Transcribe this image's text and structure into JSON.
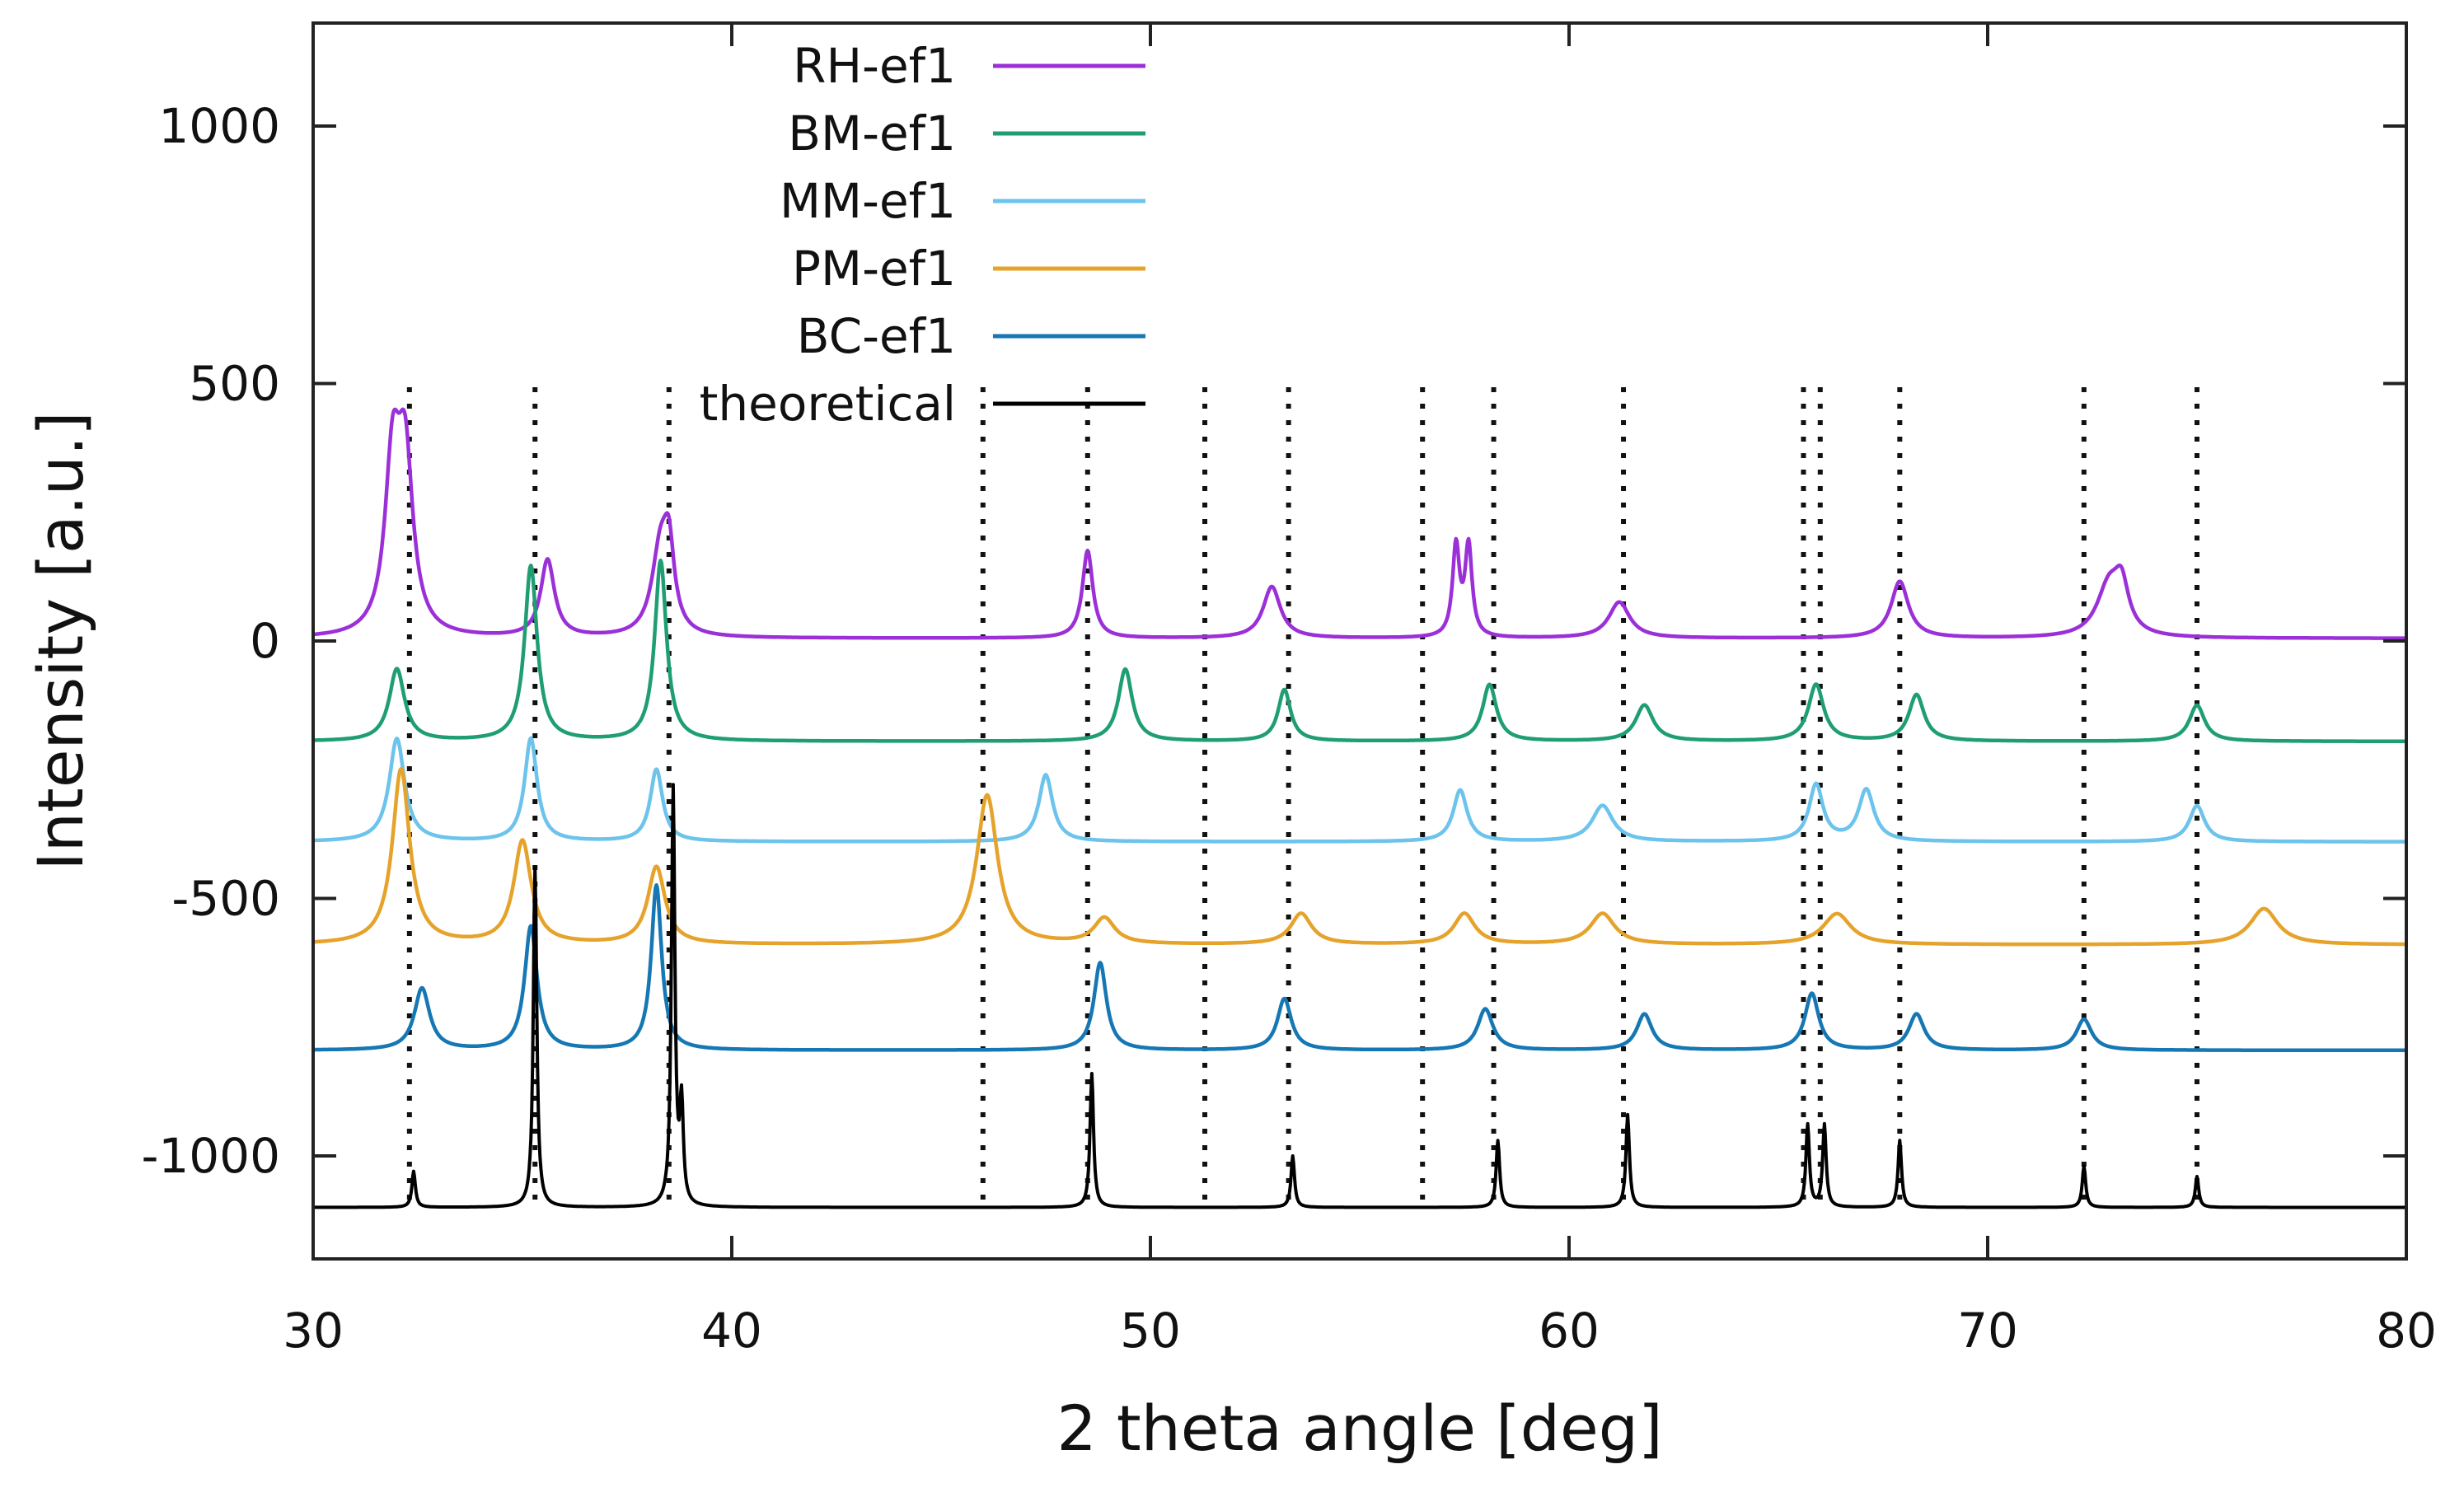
{
  "chart_data": {
    "type": "line",
    "title": "",
    "xlabel": "2 theta angle [deg]",
    "ylabel": "Intensity [a.u.]",
    "xlim": [
      30,
      80
    ],
    "ylim": [
      -1200,
      1200
    ],
    "grid": false,
    "legend_position": "top-center",
    "xticks": [
      30,
      40,
      50,
      60,
      70,
      80
    ],
    "xtick_labels": [
      "30",
      "40",
      "50",
      "60",
      "70",
      "80"
    ],
    "yticks": [
      -1000,
      -500,
      0,
      500,
      1000
    ],
    "ytick_labels": [
      "-1000",
      "-500",
      "0",
      "500",
      "1000"
    ],
    "reference_lines_x": [
      32.3,
      35.3,
      38.5,
      46.0,
      48.5,
      51.3,
      53.3,
      56.5,
      58.2,
      61.3,
      65.6,
      66.0,
      67.9,
      72.3,
      75.0
    ],
    "series": [
      {
        "name": "RH-ef1",
        "label": "RH-ef1",
        "color": "#9b30d9",
        "baseline": 5,
        "peaks": [
          [
            31.9,
            320,
            0.22
          ],
          [
            32.2,
            320,
            0.22
          ],
          [
            35.6,
            150,
            0.2
          ],
          [
            38.3,
            170,
            0.25
          ],
          [
            38.5,
            130,
            0.15
          ],
          [
            48.5,
            170,
            0.15
          ],
          [
            52.9,
            100,
            0.25
          ],
          [
            57.3,
            175,
            0.1
          ],
          [
            57.6,
            175,
            0.1
          ],
          [
            61.2,
            70,
            0.3
          ],
          [
            67.9,
            110,
            0.25
          ],
          [
            72.9,
            100,
            0.35
          ],
          [
            73.2,
            80,
            0.2
          ]
        ]
      },
      {
        "name": "BM-ef1",
        "label": "BM-ef1",
        "color": "#1f9e73",
        "baseline": -195,
        "peaks": [
          [
            32.0,
            140,
            0.22
          ],
          [
            35.2,
            340,
            0.18
          ],
          [
            38.3,
            350,
            0.17
          ],
          [
            49.4,
            140,
            0.2
          ],
          [
            53.2,
            100,
            0.18
          ],
          [
            58.1,
            110,
            0.2
          ],
          [
            61.8,
            70,
            0.25
          ],
          [
            65.9,
            110,
            0.22
          ],
          [
            68.3,
            90,
            0.22
          ],
          [
            75.0,
            70,
            0.22
          ]
        ]
      },
      {
        "name": "MM-ef1",
        "label": "MM-ef1",
        "color": "#6cc3ec",
        "baseline": -390,
        "peaks": [
          [
            32.0,
            200,
            0.22
          ],
          [
            35.2,
            200,
            0.18
          ],
          [
            38.2,
            140,
            0.18
          ],
          [
            47.5,
            130,
            0.2
          ],
          [
            57.4,
            100,
            0.2
          ],
          [
            60.8,
            70,
            0.3
          ],
          [
            65.9,
            110,
            0.2
          ],
          [
            67.1,
            100,
            0.22
          ],
          [
            75.0,
            70,
            0.22
          ]
        ]
      },
      {
        "name": "PM-ef1",
        "label": "PM-ef1",
        "color": "#e6a32b",
        "baseline": -590,
        "peaks": [
          [
            32.1,
            340,
            0.25
          ],
          [
            35.0,
            200,
            0.25
          ],
          [
            38.2,
            150,
            0.25
          ],
          [
            46.1,
            290,
            0.3
          ],
          [
            48.9,
            50,
            0.3
          ],
          [
            53.6,
            60,
            0.3
          ],
          [
            57.5,
            60,
            0.3
          ],
          [
            60.8,
            60,
            0.35
          ],
          [
            66.4,
            60,
            0.4
          ],
          [
            76.6,
            70,
            0.4
          ]
        ]
      },
      {
        "name": "BC-ef1",
        "label": "BC-ef1",
        "color": "#1577b3",
        "baseline": -795,
        "peaks": [
          [
            32.6,
            120,
            0.22
          ],
          [
            35.2,
            240,
            0.18
          ],
          [
            38.2,
            320,
            0.15
          ],
          [
            48.8,
            170,
            0.18
          ],
          [
            53.2,
            100,
            0.2
          ],
          [
            58.0,
            80,
            0.22
          ],
          [
            61.8,
            70,
            0.22
          ],
          [
            65.8,
            110,
            0.2
          ],
          [
            68.3,
            70,
            0.22
          ],
          [
            72.3,
            60,
            0.22
          ]
        ]
      },
      {
        "name": "theoretical",
        "label": "theoretical",
        "color": "#000000",
        "baseline": -1100,
        "peaks": [
          [
            32.4,
            70,
            0.05
          ],
          [
            35.3,
            660,
            0.05
          ],
          [
            38.6,
            810,
            0.05
          ],
          [
            38.8,
            190,
            0.05
          ],
          [
            48.6,
            260,
            0.05
          ],
          [
            53.4,
            100,
            0.05
          ],
          [
            58.3,
            130,
            0.05
          ],
          [
            61.4,
            180,
            0.05
          ],
          [
            65.7,
            160,
            0.05
          ],
          [
            66.1,
            160,
            0.05
          ],
          [
            67.9,
            130,
            0.05
          ],
          [
            72.3,
            80,
            0.05
          ],
          [
            75.0,
            60,
            0.05
          ]
        ]
      }
    ]
  }
}
